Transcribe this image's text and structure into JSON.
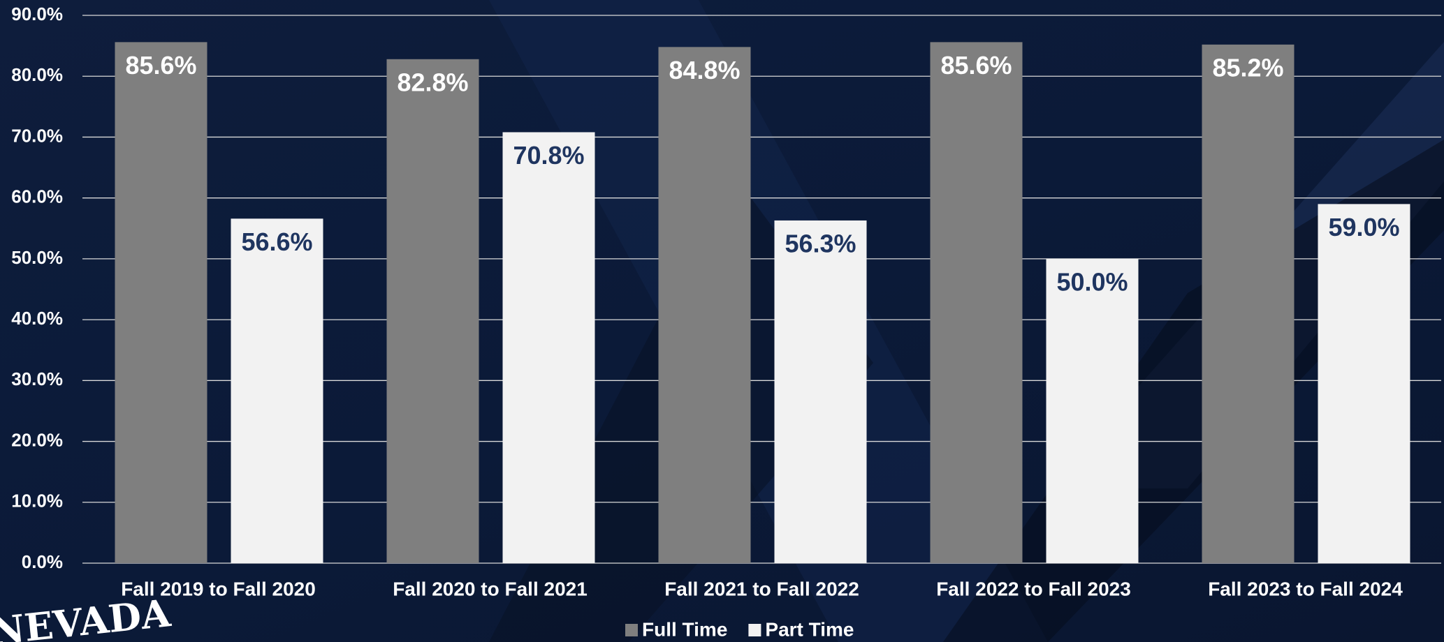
{
  "chart_data": {
    "type": "bar",
    "categories": [
      "Fall 2019 to Fall 2020",
      "Fall 2020 to Fall 2021",
      "Fall 2021 to Fall 2022",
      "Fall 2022 to Fall 2023",
      "Fall 2023 to Fall 2024"
    ],
    "series": [
      {
        "name": "Full Time",
        "color": "#7f7f7f",
        "label_color": "#ffffff",
        "values": [
          85.6,
          82.8,
          84.8,
          85.6,
          85.2
        ],
        "value_labels": [
          "85.6%",
          "82.8%",
          "84.8%",
          "85.6%",
          "85.2%"
        ]
      },
      {
        "name": "Part Time",
        "color": "#f2f2f2",
        "label_color": "#1f3560",
        "values": [
          56.6,
          70.8,
          56.3,
          50.0,
          59.0
        ],
        "value_labels": [
          "56.6%",
          "70.8%",
          "56.3%",
          "50.0%",
          "59.0%"
        ]
      }
    ],
    "ylim": [
      0,
      90
    ],
    "yticks": [
      {
        "value": 0,
        "label": "0.0%"
      },
      {
        "value": 10,
        "label": "10.0%"
      },
      {
        "value": 20,
        "label": "20.0%"
      },
      {
        "value": 30,
        "label": "30.0%"
      },
      {
        "value": 40,
        "label": "40.0%"
      },
      {
        "value": 50,
        "label": "50.0%"
      },
      {
        "value": 60,
        "label": "60.0%"
      },
      {
        "value": 70,
        "label": "70.0%"
      },
      {
        "value": 80,
        "label": "80.0%"
      },
      {
        "value": 90,
        "label": "90.0%"
      }
    ],
    "grid": true,
    "legend": "bottom",
    "logo": "NEVADA"
  }
}
